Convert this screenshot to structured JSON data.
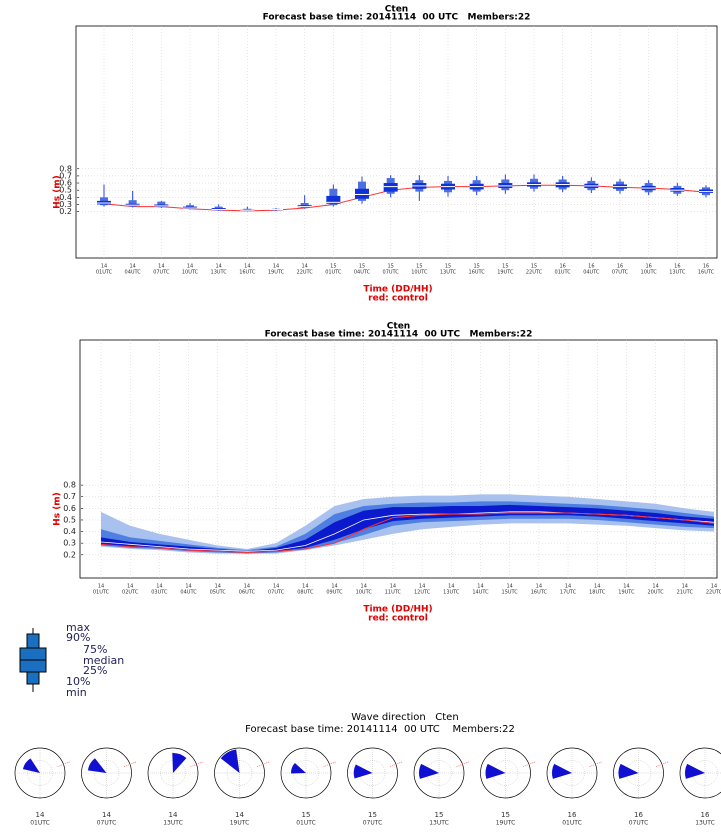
{
  "chart_data": [
    {
      "type": "boxplot",
      "title": "Cten",
      "subtitle": "Forecast base time: 20141114  00 UTC   Members:22",
      "y_label": "Hs (m)",
      "x_label": "Time (DD/HH)",
      "note": "red: control",
      "categories": [
        [
          "14",
          "01UTC"
        ],
        [
          "14",
          "04UTC"
        ],
        [
          "14",
          "07UTC"
        ],
        [
          "14",
          "10UTC"
        ],
        [
          "14",
          "13UTC"
        ],
        [
          "14",
          "16UTC"
        ],
        [
          "14",
          "19UTC"
        ],
        [
          "14",
          "22UTC"
        ],
        [
          "15",
          "01UTC"
        ],
        [
          "15",
          "04UTC"
        ],
        [
          "15",
          "07UTC"
        ],
        [
          "15",
          "10UTC"
        ],
        [
          "15",
          "13UTC"
        ],
        [
          "15",
          "16UTC"
        ],
        [
          "15",
          "19UTC"
        ],
        [
          "15",
          "22UTC"
        ],
        [
          "16",
          "01UTC"
        ],
        [
          "16",
          "04UTC"
        ],
        [
          "16",
          "07UTC"
        ],
        [
          "16",
          "10UTC"
        ],
        [
          "16",
          "13UTC"
        ],
        [
          "16",
          "16UTC"
        ]
      ],
      "series": [
        {
          "name": "max",
          "values": [
            0.58,
            0.49,
            0.35,
            0.32,
            0.3,
            0.27,
            0.25,
            0.43,
            0.58,
            0.69,
            0.71,
            0.71,
            0.7,
            0.7,
            0.72,
            0.72,
            0.7,
            0.68,
            0.66,
            0.64,
            0.6,
            0.57
          ]
        },
        {
          "name": "90%",
          "values": [
            0.4,
            0.36,
            0.34,
            0.29,
            0.27,
            0.24,
            0.24,
            0.32,
            0.52,
            0.62,
            0.67,
            0.64,
            0.63,
            0.64,
            0.65,
            0.66,
            0.65,
            0.63,
            0.62,
            0.6,
            0.56,
            0.54
          ]
        },
        {
          "name": "75%",
          "values": [
            0.35,
            0.31,
            0.3,
            0.27,
            0.25,
            0.23,
            0.23,
            0.29,
            0.42,
            0.52,
            0.6,
            0.6,
            0.59,
            0.59,
            0.6,
            0.61,
            0.61,
            0.59,
            0.58,
            0.56,
            0.53,
            0.51
          ]
        },
        {
          "name": "median",
          "values": [
            0.32,
            0.29,
            0.28,
            0.25,
            0.23,
            0.22,
            0.23,
            0.27,
            0.33,
            0.44,
            0.55,
            0.56,
            0.55,
            0.55,
            0.56,
            0.58,
            0.58,
            0.56,
            0.55,
            0.53,
            0.5,
            0.48
          ]
        },
        {
          "name": "25%",
          "values": [
            0.3,
            0.28,
            0.27,
            0.24,
            0.22,
            0.22,
            0.22,
            0.26,
            0.31,
            0.38,
            0.48,
            0.52,
            0.51,
            0.51,
            0.53,
            0.55,
            0.54,
            0.53,
            0.52,
            0.5,
            0.48,
            0.46
          ]
        },
        {
          "name": "10%",
          "values": [
            0.29,
            0.27,
            0.26,
            0.24,
            0.22,
            0.21,
            0.22,
            0.25,
            0.29,
            0.35,
            0.45,
            0.48,
            0.47,
            0.48,
            0.5,
            0.52,
            0.51,
            0.5,
            0.49,
            0.47,
            0.45,
            0.43
          ]
        },
        {
          "name": "min",
          "values": [
            0.27,
            0.26,
            0.25,
            0.23,
            0.21,
            0.21,
            0.21,
            0.24,
            0.27,
            0.31,
            0.4,
            0.35,
            0.41,
            0.43,
            0.45,
            0.48,
            0.47,
            0.46,
            0.45,
            0.43,
            0.42,
            0.4
          ]
        }
      ],
      "control": [
        0.31,
        0.27,
        0.27,
        0.24,
        0.22,
        0.21,
        0.22,
        0.25,
        0.3,
        0.4,
        0.5,
        0.54,
        0.55,
        0.55,
        0.56,
        0.57,
        0.57,
        0.56,
        0.54,
        0.53,
        0.51,
        0.47
      ],
      "ylim": [
        -0.45,
        2.8
      ],
      "yticks": [
        0.2,
        0.3,
        0.4,
        0.5,
        0.6,
        0.7,
        0.8
      ],
      "grid": true
    },
    {
      "type": "fan",
      "title": "Cten",
      "subtitle": "Forecast base time: 20141114  00 UTC   Members:22",
      "y_label": "Hs (m)",
      "x_label": "Time (DD/HH)",
      "note": "red: control",
      "categories": [
        [
          "14",
          "01UTC"
        ],
        [
          "14",
          "02UTC"
        ],
        [
          "14",
          "03UTC"
        ],
        [
          "14",
          "04UTC"
        ],
        [
          "14",
          "05UTC"
        ],
        [
          "14",
          "06UTC"
        ],
        [
          "14",
          "07UTC"
        ],
        [
          "14",
          "08UTC"
        ],
        [
          "14",
          "09UTC"
        ],
        [
          "14",
          "10UTC"
        ],
        [
          "14",
          "11UTC"
        ],
        [
          "14",
          "12UTC"
        ],
        [
          "14",
          "13UTC"
        ],
        [
          "14",
          "14UTC"
        ],
        [
          "14",
          "15UTC"
        ],
        [
          "14",
          "16UTC"
        ],
        [
          "14",
          "17UTC"
        ],
        [
          "14",
          "18UTC"
        ],
        [
          "14",
          "19UTC"
        ],
        [
          "14",
          "20UTC"
        ],
        [
          "14",
          "21UTC"
        ],
        [
          "14",
          "22UTC"
        ]
      ],
      "series": [
        {
          "values": [
            0.57,
            0.45,
            0.38,
            0.33,
            0.28,
            0.25,
            0.3,
            0.45,
            0.62,
            0.68,
            0.7,
            0.71,
            0.71,
            0.72,
            0.72,
            0.71,
            0.7,
            0.68,
            0.66,
            0.64,
            0.6,
            0.57
          ]
        },
        {
          "values": [
            0.42,
            0.35,
            0.32,
            0.29,
            0.26,
            0.24,
            0.27,
            0.38,
            0.55,
            0.62,
            0.64,
            0.65,
            0.65,
            0.66,
            0.66,
            0.65,
            0.64,
            0.63,
            0.61,
            0.59,
            0.56,
            0.53
          ]
        },
        {
          "values": [
            0.35,
            0.31,
            0.29,
            0.27,
            0.25,
            0.23,
            0.26,
            0.33,
            0.48,
            0.58,
            0.61,
            0.61,
            0.62,
            0.62,
            0.63,
            0.62,
            0.61,
            0.6,
            0.58,
            0.56,
            0.53,
            0.51
          ]
        },
        {
          "values": [
            0.31,
            0.29,
            0.27,
            0.25,
            0.24,
            0.23,
            0.24,
            0.28,
            0.38,
            0.5,
            0.54,
            0.55,
            0.55,
            0.56,
            0.57,
            0.57,
            0.56,
            0.55,
            0.54,
            0.52,
            0.5,
            0.48
          ]
        },
        {
          "values": [
            0.29,
            0.27,
            0.26,
            0.24,
            0.23,
            0.22,
            0.23,
            0.26,
            0.33,
            0.42,
            0.49,
            0.51,
            0.52,
            0.53,
            0.54,
            0.54,
            0.54,
            0.53,
            0.51,
            0.49,
            0.47,
            0.45
          ]
        },
        {
          "values": [
            0.28,
            0.26,
            0.25,
            0.23,
            0.22,
            0.21,
            0.22,
            0.25,
            0.3,
            0.37,
            0.45,
            0.48,
            0.49,
            0.5,
            0.51,
            0.51,
            0.51,
            0.5,
            0.48,
            0.46,
            0.44,
            0.43
          ]
        },
        {
          "values": [
            0.27,
            0.25,
            0.24,
            0.22,
            0.21,
            0.21,
            0.21,
            0.24,
            0.28,
            0.33,
            0.38,
            0.42,
            0.44,
            0.46,
            0.47,
            0.47,
            0.47,
            0.46,
            0.45,
            0.43,
            0.41,
            0.4
          ]
        }
      ],
      "control": [
        0.29,
        0.27,
        0.26,
        0.24,
        0.23,
        0.22,
        0.23,
        0.25,
        0.3,
        0.42,
        0.52,
        0.54,
        0.55,
        0.55,
        0.56,
        0.56,
        0.56,
        0.55,
        0.54,
        0.52,
        0.5,
        0.47
      ],
      "ylim": [
        0,
        2.05
      ],
      "yticks": [
        0.2,
        0.3,
        0.4,
        0.5,
        0.6,
        0.7,
        0.8
      ],
      "grid": true
    },
    {
      "type": "rose",
      "title": "Wave direction   Cten",
      "subtitle": "Forecast base time: 20141114  00 UTC    Members:22",
      "categories": [
        [
          "14",
          "01UTC"
        ],
        [
          "14",
          "07UTC"
        ],
        [
          "14",
          "13UTC"
        ],
        [
          "14",
          "19UTC"
        ],
        [
          "15",
          "01UTC"
        ],
        [
          "15",
          "07UTC"
        ],
        [
          "15",
          "13UTC"
        ],
        [
          "15",
          "19UTC"
        ],
        [
          "16",
          "01UTC"
        ],
        [
          "16",
          "07UTC"
        ],
        [
          "16",
          "13UTC"
        ]
      ],
      "values": [
        305,
        300,
        20,
        330,
        290,
        275,
        275,
        275,
        275,
        275,
        275
      ],
      "lengths": [
        0.7,
        0.75,
        0.8,
        0.95,
        0.6,
        0.75,
        0.8,
        0.8,
        0.8,
        0.8,
        0.8
      ],
      "color": "#1010d0"
    }
  ]
}
